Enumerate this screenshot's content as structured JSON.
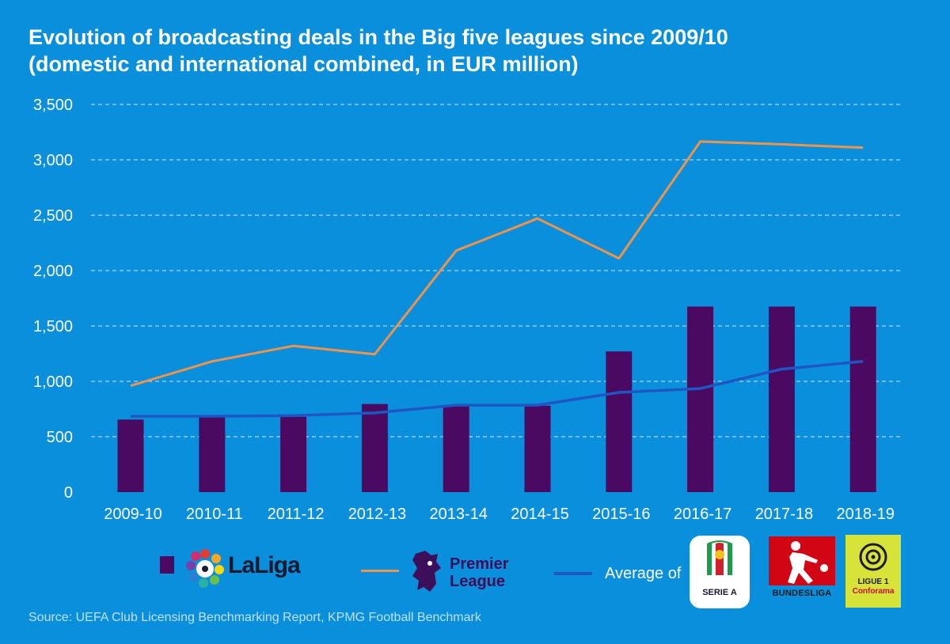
{
  "title": {
    "line1": "Evolution of broadcasting deals in the Big five leagues since 2009/10",
    "line2": "(domestic and international combined, in EUR million)"
  },
  "colors": {
    "background": "#0a8fdc",
    "bar": "#4a0a62",
    "premier_league": "#f0934a",
    "average": "#1e56c4",
    "grid": "#cfe9f8",
    "axis_text": "#ffffff"
  },
  "chart_data": {
    "type": "bar",
    "title": "Evolution of broadcasting deals in the Big five leagues since 2009/10 (domestic and international combined, in EUR million)",
    "categories": [
      "2009-10",
      "2010-11",
      "2011-12",
      "2012-13",
      "2013-14",
      "2014-15",
      "2015-16",
      "2016-17",
      "2017-18",
      "2018-19"
    ],
    "ylim": [
      0,
      3500
    ],
    "yticks": [
      0,
      500,
      1000,
      1500,
      2000,
      2500,
      3000,
      3500
    ],
    "ytick_labels": [
      "0",
      "500",
      "1,000",
      "1,500",
      "2,000",
      "2,500",
      "3,000",
      "3,500"
    ],
    "grid": true,
    "series": [
      {
        "name": "LaLiga",
        "kind": "bar",
        "values": [
          655,
          680,
          680,
          795,
          780,
          780,
          1270,
          1675,
          1675,
          1675
        ]
      },
      {
        "name": "Premier League",
        "kind": "line",
        "values": [
          960,
          1180,
          1320,
          1245,
          2180,
          2470,
          2110,
          3165,
          3140,
          3110
        ]
      },
      {
        "name": "Average of Serie A, Bundesliga, Ligue 1",
        "kind": "line",
        "values": [
          685,
          685,
          690,
          715,
          785,
          785,
          900,
          935,
          1110,
          1180
        ]
      }
    ]
  },
  "legend": {
    "laliga_label": "LaLiga",
    "pl_line1": "Premier",
    "pl_line2": "League",
    "average_label": "Average of",
    "seriea_label": "SERIE A",
    "bundesliga_label": "BUNDESLIGA",
    "ligue1_line1": "LIGUE 1",
    "ligue1_line2": "Conforama"
  },
  "source": "Source: UEFA Club Licensing Benchmarking Report, KPMG Football Benchmark"
}
